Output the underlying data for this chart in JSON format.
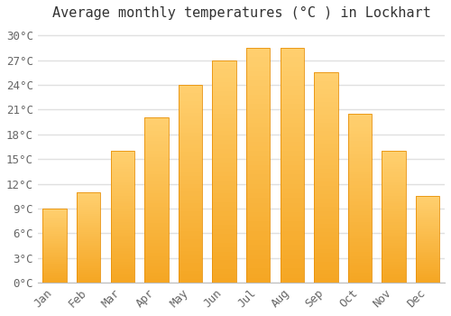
{
  "title": "Average monthly temperatures (°C ) in Lockhart",
  "months": [
    "Jan",
    "Feb",
    "Mar",
    "Apr",
    "May",
    "Jun",
    "Jul",
    "Aug",
    "Sep",
    "Oct",
    "Nov",
    "Dec"
  ],
  "values": [
    9.0,
    11.0,
    16.0,
    20.0,
    24.0,
    27.0,
    28.5,
    28.5,
    25.5,
    20.5,
    16.0,
    10.5
  ],
  "bar_color_bottom": "#F5A623",
  "bar_color_top": "#FFD070",
  "bar_edge_color": "#E8910A",
  "ylim": [
    0,
    31
  ],
  "yticks": [
    0,
    3,
    6,
    9,
    12,
    15,
    18,
    21,
    24,
    27,
    30
  ],
  "ytick_labels": [
    "0°C",
    "3°C",
    "6°C",
    "9°C",
    "12°C",
    "15°C",
    "18°C",
    "21°C",
    "24°C",
    "27°C",
    "30°C"
  ],
  "bg_color": "#ffffff",
  "plot_bg_color": "#ffffff",
  "grid_color": "#e0e0e0",
  "title_fontsize": 11,
  "tick_fontsize": 9,
  "tick_color": "#666666",
  "font_family": "monospace",
  "bar_width": 0.7
}
